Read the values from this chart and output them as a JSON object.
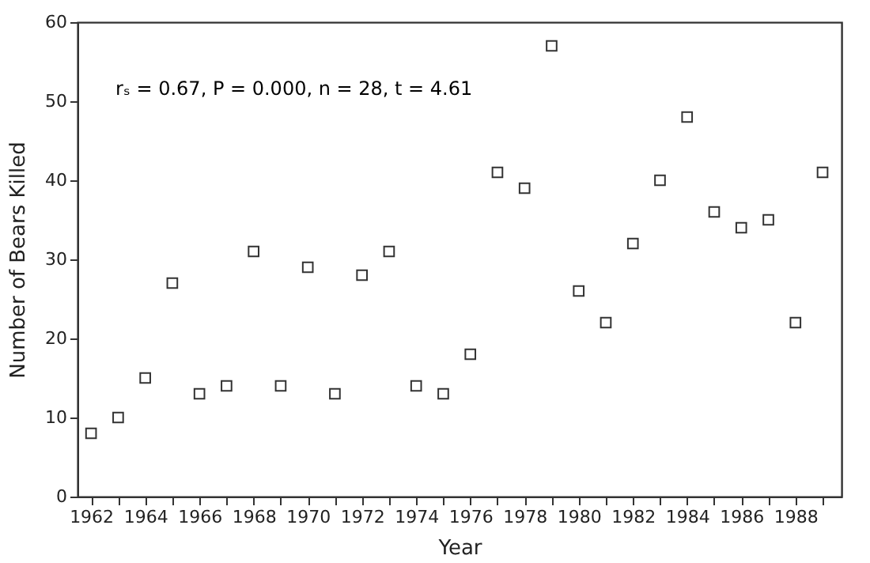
{
  "chart_data": {
    "type": "scatter",
    "xlabel": "Year",
    "ylabel": "Number of Bears Killed",
    "x": [
      1962,
      1963,
      1964,
      1965,
      1966,
      1967,
      1968,
      1969,
      1970,
      1971,
      1972,
      1973,
      1974,
      1975,
      1976,
      1977,
      1978,
      1979,
      1980,
      1981,
      1982,
      1983,
      1984,
      1985,
      1986,
      1987,
      1988,
      1989
    ],
    "values": [
      8,
      10,
      15,
      27,
      13,
      14,
      31,
      14,
      29,
      13,
      28,
      31,
      14,
      13,
      18,
      41,
      39,
      57,
      26,
      22,
      32,
      40,
      48,
      36,
      34,
      35,
      22,
      41
    ],
    "color": "#333333",
    "marker": "square",
    "xlim": [
      1961.5,
      1989.7
    ],
    "xticks": [
      1962,
      {
        "value": 1963,
        "label": null
      },
      1964,
      {
        "value": 1965,
        "label": null
      },
      1966,
      {
        "value": 1967,
        "label": null
      },
      1968,
      {
        "value": 1969,
        "label": null
      },
      1970,
      {
        "value": 1971,
        "label": null
      },
      1972,
      {
        "value": 1973,
        "label": null
      },
      1974,
      {
        "value": 1975,
        "label": null
      },
      1976,
      {
        "value": 1977,
        "label": null
      },
      1978,
      {
        "value": 1979,
        "label": null
      },
      1980,
      {
        "value": 1981,
        "label": null
      },
      1982,
      {
        "value": 1983,
        "label": null
      },
      1984,
      {
        "value": 1985,
        "label": null
      },
      1986,
      {
        "value": 1987,
        "label": null
      },
      1988,
      {
        "value": 1989,
        "label": null
      }
    ],
    "ylim": [
      0,
      60
    ],
    "yticks": [
      0,
      10,
      20,
      30,
      40,
      50,
      60
    ],
    "grid": false,
    "annotations": [
      "rₛ = 0.67, P = 0.000, n = 28, t = 4.61"
    ]
  }
}
